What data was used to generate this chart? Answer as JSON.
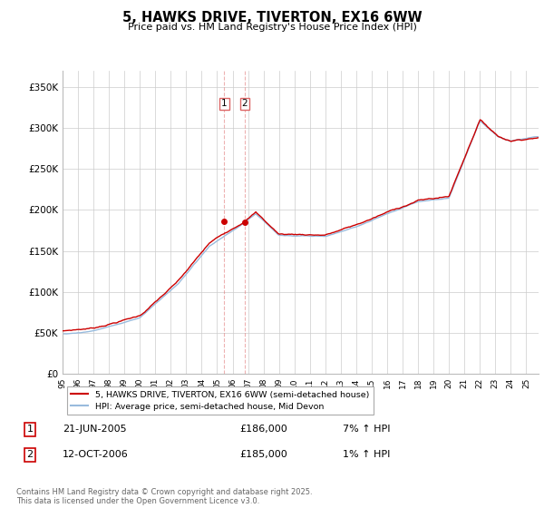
{
  "title": "5, HAWKS DRIVE, TIVERTON, EX16 6WW",
  "subtitle": "Price paid vs. HM Land Registry's House Price Index (HPI)",
  "ylabel_ticks": [
    "£0",
    "£50K",
    "£100K",
    "£150K",
    "£200K",
    "£250K",
    "£300K",
    "£350K"
  ],
  "ytick_values": [
    0,
    50000,
    100000,
    150000,
    200000,
    250000,
    300000,
    350000
  ],
  "ylim": [
    0,
    370000
  ],
  "xlim_start": 1995.0,
  "xlim_end": 2025.8,
  "hpi_color": "#99bbdd",
  "price_color": "#cc0000",
  "vline_color": "#dd6666",
  "vline_alpha": 0.5,
  "vline1_x": 2005.47,
  "vline2_x": 2006.79,
  "marker1_x": 2005.47,
  "marker1_y": 186000,
  "marker2_x": 2006.79,
  "marker2_y": 185000,
  "legend_line1": "5, HAWKS DRIVE, TIVERTON, EX16 6WW (semi-detached house)",
  "legend_line2": "HPI: Average price, semi-detached house, Mid Devon",
  "table_row1": [
    "1",
    "21-JUN-2005",
    "£186,000",
    "7% ↑ HPI"
  ],
  "table_row2": [
    "2",
    "12-OCT-2006",
    "£185,000",
    "1% ↑ HPI"
  ],
  "footnote": "Contains HM Land Registry data © Crown copyright and database right 2025.\nThis data is licensed under the Open Government Licence v3.0.",
  "background_color": "#ffffff",
  "grid_color": "#cccccc"
}
